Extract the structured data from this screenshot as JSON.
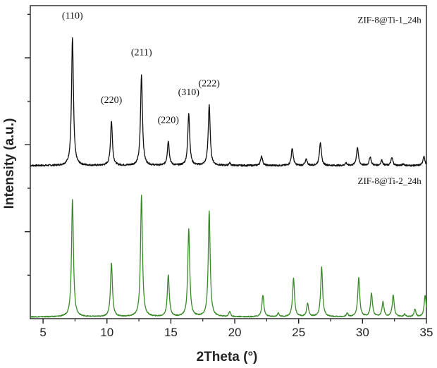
{
  "chart_data": {
    "type": "line",
    "title": "",
    "xlabel": "2Theta (°)",
    "ylabel": "Intensity (a.u.)",
    "xlim": [
      4,
      35
    ],
    "x_ticks": [
      5,
      10,
      15,
      20,
      25,
      30,
      35
    ],
    "ylim": [
      0,
      3.6
    ],
    "grid": false,
    "legend": "none",
    "series": [
      {
        "name": "ZIF-8@Ti-1_24h",
        "color": "#111111",
        "baseline": 1.76,
        "noise": 0.01,
        "peaks": [
          {
            "x": 7.3,
            "h": 1.47,
            "w": 0.09
          },
          {
            "x": 10.35,
            "h": 0.51,
            "w": 0.09
          },
          {
            "x": 12.7,
            "h": 1.04,
            "w": 0.09
          },
          {
            "x": 14.8,
            "h": 0.28,
            "w": 0.09
          },
          {
            "x": 16.4,
            "h": 0.6,
            "w": 0.09
          },
          {
            "x": 18.0,
            "h": 0.7,
            "w": 0.09
          },
          {
            "x": 19.6,
            "h": 0.03,
            "w": 0.08
          },
          {
            "x": 22.1,
            "h": 0.11,
            "w": 0.09
          },
          {
            "x": 24.5,
            "h": 0.2,
            "w": 0.09
          },
          {
            "x": 25.6,
            "h": 0.07,
            "w": 0.09
          },
          {
            "x": 26.7,
            "h": 0.27,
            "w": 0.09
          },
          {
            "x": 28.7,
            "h": 0.03,
            "w": 0.08
          },
          {
            "x": 29.6,
            "h": 0.21,
            "w": 0.09
          },
          {
            "x": 30.6,
            "h": 0.1,
            "w": 0.09
          },
          {
            "x": 31.5,
            "h": 0.06,
            "w": 0.09
          },
          {
            "x": 32.3,
            "h": 0.09,
            "w": 0.09
          },
          {
            "x": 33.2,
            "h": 0.02,
            "w": 0.08
          },
          {
            "x": 34.8,
            "h": 0.11,
            "w": 0.09
          }
        ]
      },
      {
        "name": "ZIF-8@Ti-2_24h",
        "color": "#3a8a2a",
        "baseline": 0.02,
        "noise": 0.006,
        "peaks": [
          {
            "x": 7.3,
            "h": 1.35,
            "w": 0.09
          },
          {
            "x": 10.35,
            "h": 0.62,
            "w": 0.09
          },
          {
            "x": 12.7,
            "h": 1.4,
            "w": 0.09
          },
          {
            "x": 14.8,
            "h": 0.48,
            "w": 0.09
          },
          {
            "x": 16.4,
            "h": 1.01,
            "w": 0.09
          },
          {
            "x": 18.0,
            "h": 1.21,
            "w": 0.09
          },
          {
            "x": 19.6,
            "h": 0.06,
            "w": 0.08
          },
          {
            "x": 22.2,
            "h": 0.25,
            "w": 0.09
          },
          {
            "x": 23.4,
            "h": 0.04,
            "w": 0.08
          },
          {
            "x": 24.6,
            "h": 0.44,
            "w": 0.09
          },
          {
            "x": 25.7,
            "h": 0.15,
            "w": 0.09
          },
          {
            "x": 26.8,
            "h": 0.57,
            "w": 0.09
          },
          {
            "x": 28.8,
            "h": 0.04,
            "w": 0.08
          },
          {
            "x": 29.7,
            "h": 0.45,
            "w": 0.09
          },
          {
            "x": 30.7,
            "h": 0.27,
            "w": 0.09
          },
          {
            "x": 31.6,
            "h": 0.17,
            "w": 0.09
          },
          {
            "x": 32.4,
            "h": 0.25,
            "w": 0.09
          },
          {
            "x": 33.3,
            "h": 0.03,
            "w": 0.08
          },
          {
            "x": 34.1,
            "h": 0.09,
            "w": 0.08
          },
          {
            "x": 34.9,
            "h": 0.25,
            "w": 0.09
          }
        ]
      }
    ],
    "annotations": [
      {
        "text": "(110)",
        "x": 7.3,
        "y": 3.45
      },
      {
        "text": "(220)",
        "x": 10.35,
        "y": 2.48
      },
      {
        "text": "(211)",
        "x": 12.7,
        "y": 3.03
      },
      {
        "text": "(220)",
        "x": 14.8,
        "y": 2.25
      },
      {
        "text": "(310)",
        "x": 16.4,
        "y": 2.57
      },
      {
        "text": "(222)",
        "x": 18.0,
        "y": 2.67
      }
    ],
    "series_labels": [
      {
        "text": "ZIF-8@Ti-1_24h",
        "x": 34.6,
        "y": 3.4,
        "anchor": "end"
      },
      {
        "text": "ZIF-8@Ti-2_24h",
        "x": 34.6,
        "y": 1.55,
        "anchor": "end"
      }
    ]
  }
}
